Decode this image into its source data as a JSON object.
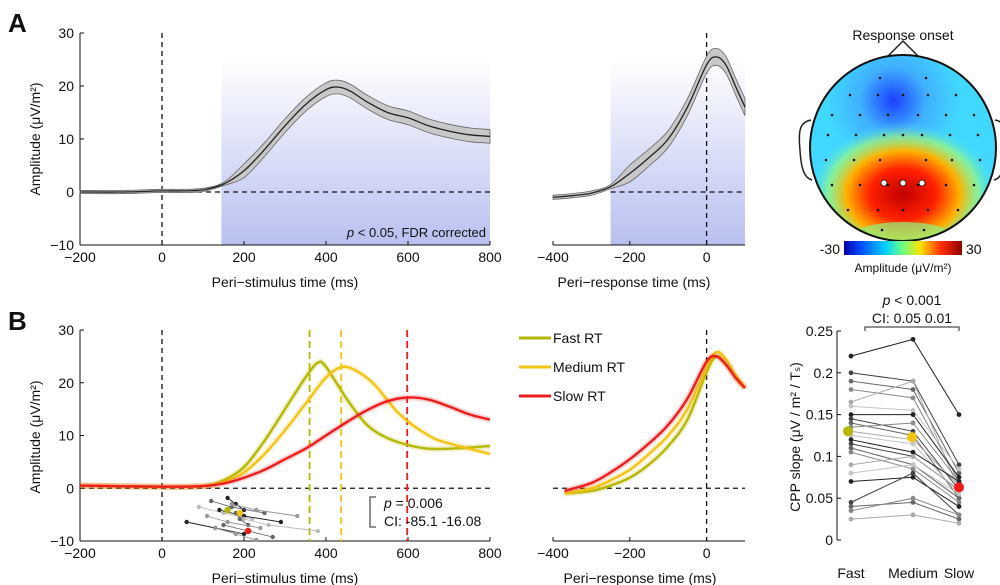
{
  "panels": {
    "a": "A",
    "b": "B"
  },
  "colors": {
    "fast": "#b5b800",
    "medium": "#f3c413",
    "slow": "#ee1c1c",
    "sig": "#c5cbf0",
    "grand": "#222222"
  },
  "panel_a": {
    "stim_chart": {
      "type": "line",
      "xlabel": "Peri−stimulus time (ms)",
      "ylabel": "Amplitude (μV/m²)",
      "xlim": [
        -200,
        800
      ],
      "ylim": [
        -10,
        30
      ],
      "xticks": [
        -200,
        0,
        200,
        400,
        600,
        800
      ],
      "yticks": [
        -10,
        0,
        10,
        20,
        30
      ],
      "annotation_p": "p",
      "annotation_text": " < 0.05, FDR corrected",
      "sig_start": 145,
      "series": [
        {
          "x": [
            -200,
            -100,
            0,
            50,
            100,
            150,
            200,
            250,
            300,
            350,
            400,
            430,
            460,
            500,
            550,
            600,
            650,
            700,
            750,
            800
          ],
          "y": [
            0,
            0,
            0.2,
            0.2,
            0.4,
            1.5,
            4,
            8,
            12.5,
            16.5,
            19.3,
            19.8,
            19,
            17,
            15,
            14,
            12.5,
            11.5,
            10.8,
            10.5
          ]
        }
      ]
    },
    "resp_chart": {
      "type": "line",
      "xlabel": "Peri−response time (ms)",
      "xlim": [
        -400,
        100
      ],
      "ylim": [
        -10,
        30
      ],
      "xticks": [
        -400,
        -200,
        0
      ],
      "sig_start": -250,
      "series": [
        {
          "x": [
            -400,
            -350,
            -300,
            -250,
            -200,
            -150,
            -100,
            -50,
            0,
            25,
            50,
            75,
            100
          ],
          "y": [
            -1,
            -0.7,
            -0.2,
            1,
            3.5,
            6.5,
            10,
            16,
            24,
            25.5,
            24,
            20,
            16
          ]
        }
      ]
    },
    "topo": {
      "title": "Response onset",
      "cbar_min": "-30",
      "cbar_max": "30",
      "cbar_label": "Amplitude (μV/m²)"
    }
  },
  "panel_b": {
    "stim_chart": {
      "type": "line",
      "xlabel": "Peri−stimulus time (ms)",
      "ylabel": "Amplitude (μV/m²)",
      "xlim": [
        -200,
        800
      ],
      "ylim": [
        -10,
        30
      ],
      "xticks": [
        -200,
        0,
        200,
        400,
        600,
        800
      ],
      "yticks": [
        -10,
        0,
        10,
        20,
        30
      ],
      "vlines": [
        {
          "x": 360,
          "color_key": "fast"
        },
        {
          "x": 437,
          "color_key": "medium"
        },
        {
          "x": 598,
          "color_key": "slow"
        }
      ],
      "stat_p": "p",
      "stat_text": " = 0.006",
      "stat_ci": "CI: -85.1 -16.08",
      "series": [
        {
          "name": "Fast RT",
          "color_key": "fast",
          "x": [
            -200,
            0,
            100,
            150,
            200,
            250,
            300,
            350,
            380,
            400,
            450,
            500,
            550,
            600,
            650,
            700,
            800
          ],
          "y": [
            0.5,
            0.3,
            0.4,
            1.5,
            4,
            9,
            15,
            21,
            23.8,
            23,
            17,
            12,
            9.5,
            8.2,
            7.5,
            7.5,
            8
          ]
        },
        {
          "name": "Medium RT",
          "color_key": "medium",
          "x": [
            -200,
            0,
            100,
            150,
            200,
            250,
            300,
            350,
            400,
            440,
            480,
            520,
            580,
            650,
            700,
            800
          ],
          "y": [
            0.5,
            0.3,
            0.4,
            1.2,
            3,
            6.5,
            11,
            16,
            21,
            23,
            22,
            19.5,
            14,
            10,
            8.5,
            6.5
          ]
        },
        {
          "name": "Slow RT",
          "color_key": "slow",
          "x": [
            -200,
            0,
            100,
            150,
            200,
            250,
            300,
            350,
            400,
            450,
            500,
            550,
            600,
            650,
            700,
            750,
            800
          ],
          "y": [
            0.5,
            0.3,
            0.4,
            0.9,
            2,
            3.5,
            5.5,
            7.5,
            10,
            12.5,
            14.8,
            16.5,
            17.2,
            16.8,
            15.5,
            14,
            13
          ]
        }
      ]
    },
    "resp_chart": {
      "type": "line",
      "xlabel": "Peri−response time (ms)",
      "xlim": [
        -400,
        100
      ],
      "ylim": [
        -10,
        30
      ],
      "xticks": [
        -400,
        -200,
        0
      ],
      "series": [
        {
          "color_key": "fast",
          "x": [
            -370,
            -300,
            -250,
            -200,
            -150,
            -100,
            -50,
            0,
            25,
            50,
            75,
            100
          ],
          "y": [
            -1,
            -0.5,
            0.5,
            2,
            4.5,
            8,
            13,
            22,
            25,
            23.5,
            21,
            19
          ]
        },
        {
          "color_key": "medium",
          "x": [
            -370,
            -300,
            -250,
            -200,
            -150,
            -100,
            -50,
            0,
            25,
            50,
            75,
            100
          ],
          "y": [
            -1,
            0,
            1.5,
            3.5,
            6.5,
            10,
            15,
            23,
            25.8,
            24.5,
            21.5,
            19
          ]
        },
        {
          "color_key": "slow",
          "x": [
            -370,
            -300,
            -250,
            -200,
            -150,
            -100,
            -50,
            0,
            25,
            50,
            75,
            100
          ],
          "y": [
            -0.5,
            1,
            3,
            5.5,
            8.5,
            12,
            17,
            24,
            25,
            23.5,
            21,
            19
          ]
        }
      ]
    },
    "slope_chart": {
      "type": "scatter",
      "title_p": "p",
      "title_text": " < 0.001",
      "ci": "CI: 0.05 0.01",
      "ylabel": "CPP slope (μV / m² / Tₛ)",
      "categories": [
        "Fast",
        "Medium",
        "Slow"
      ],
      "ylim": [
        0,
        0.25
      ],
      "yticks": [
        "0",
        "0.05",
        "0.1",
        "0.15",
        "0.2",
        "0.25"
      ],
      "means": [
        0.13,
        0.123,
        0.063
      ],
      "subjects": [
        [
          0.22,
          0.24,
          0.15
        ],
        [
          0.2,
          0.19,
          0.09
        ],
        [
          0.19,
          0.18,
          0.08
        ],
        [
          0.18,
          0.17,
          0.07
        ],
        [
          0.165,
          0.19,
          0.06
        ],
        [
          0.16,
          0.155,
          0.085
        ],
        [
          0.15,
          0.15,
          0.075
        ],
        [
          0.145,
          0.13,
          0.06
        ],
        [
          0.14,
          0.125,
          0.05
        ],
        [
          0.135,
          0.14,
          0.07
        ],
        [
          0.13,
          0.12,
          0.065
        ],
        [
          0.125,
          0.115,
          0.055
        ],
        [
          0.12,
          0.105,
          0.07
        ],
        [
          0.115,
          0.1,
          0.06
        ],
        [
          0.11,
          0.09,
          0.05
        ],
        [
          0.105,
          0.085,
          0.045
        ],
        [
          0.09,
          0.1,
          0.06
        ],
        [
          0.08,
          0.09,
          0.055
        ],
        [
          0.07,
          0.075,
          0.04
        ],
        [
          0.045,
          0.08,
          0.03
        ],
        [
          0.04,
          0.045,
          0.025
        ],
        [
          0.035,
          0.05,
          0.03
        ],
        [
          0.025,
          0.03,
          0.02
        ]
      ]
    }
  }
}
